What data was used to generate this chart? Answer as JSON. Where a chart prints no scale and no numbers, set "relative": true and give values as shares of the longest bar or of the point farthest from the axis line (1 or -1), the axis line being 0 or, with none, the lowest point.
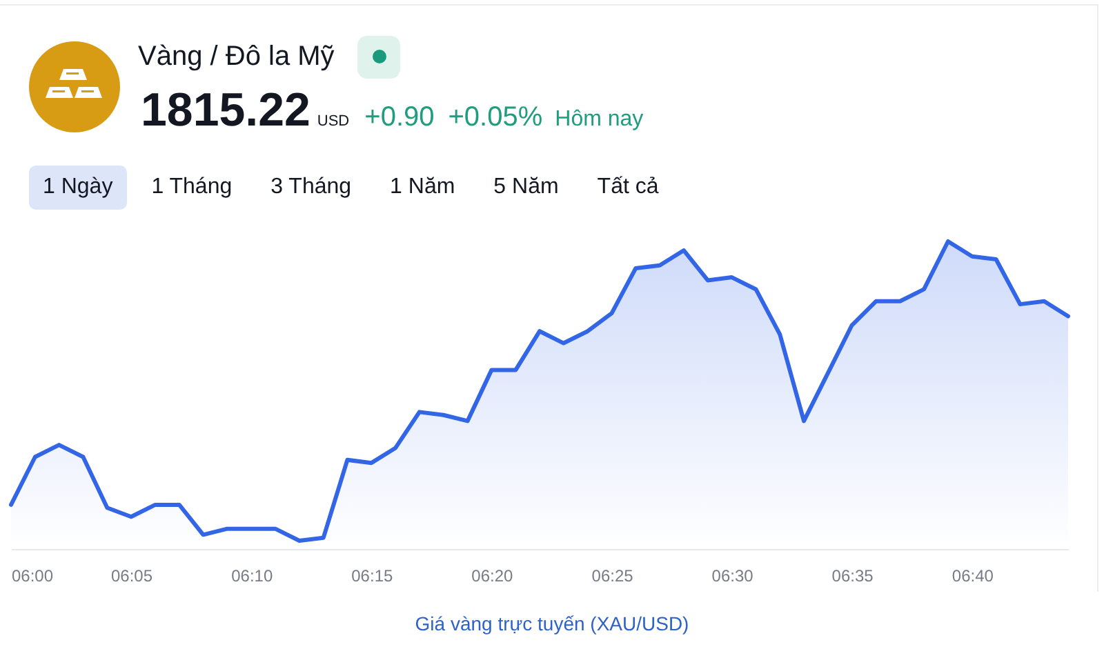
{
  "chart_data": {
    "type": "area",
    "title": "Vàng / Đô la Mỹ",
    "annotations": [
      "1815.22",
      "USD",
      "+0.90",
      "+0.05%",
      "Hôm nay",
      "1 Ngày",
      "1 Tháng",
      "3 Tháng",
      "1 Năm",
      "5 Năm",
      "Tất cả",
      "Giá vàng trực tuyến (XAU/USD)"
    ],
    "relative": true,
    "color": "#3366e6",
    "x": [
      6,
      6.0167,
      6.0333,
      6.05,
      6.0667,
      6.0833,
      6.1,
      6.1167,
      6.1333,
      6.15,
      6.1667,
      6.1833,
      6.2,
      6.2167,
      6.2333,
      6.25,
      6.2667,
      6.2833,
      6.3,
      6.3167,
      6.3333,
      6.35,
      6.3667,
      6.3833,
      6.4,
      6.4167,
      6.4333,
      6.45,
      6.4667,
      6.4833,
      6.5,
      6.5167,
      6.5333,
      6.55,
      6.5667,
      6.5833,
      6.6,
      6.6167,
      6.6333,
      6.65,
      6.6667,
      6.6833,
      6.7,
      6.7167,
      6.7333
    ],
    "values": [
      0.12,
      0.28,
      0.32,
      0.28,
      0.11,
      0.08,
      0.12,
      0.12,
      0.02,
      0.04,
      0.04,
      0.04,
      0,
      0.01,
      0.27,
      0.26,
      0.31,
      0.43,
      0.42,
      0.4,
      0.57,
      0.57,
      0.7,
      0.66,
      0.7,
      0.76,
      0.91,
      0.92,
      0.97,
      0.87,
      0.88,
      0.84,
      0.69,
      0.4,
      0.56,
      0.72,
      0.8,
      0.8,
      0.84,
      1,
      0.95,
      0.94,
      0.79,
      0.8,
      0.75
    ],
    "xlim": [
      6,
      6.7333
    ],
    "xticks": [
      {
        "value": 6,
        "label": "06:00"
      },
      {
        "value": 6.0833,
        "label": "06:05"
      },
      {
        "value": 6.1667,
        "label": "06:10"
      },
      {
        "value": 6.25,
        "label": "06:15"
      },
      {
        "value": 6.3333,
        "label": "06:20"
      },
      {
        "value": 6.4167,
        "label": "06:25"
      },
      {
        "value": 6.5,
        "label": "06:30"
      },
      {
        "value": 6.5833,
        "label": "06:35"
      },
      {
        "value": 6.6667,
        "label": "06:40"
      }
    ]
  }
}
